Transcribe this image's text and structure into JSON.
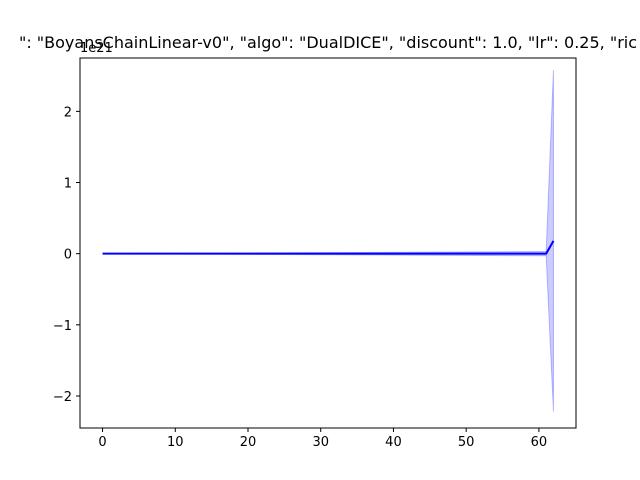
{
  "chart_data": {
    "type": "line",
    "title": "\": \"BoyansChainLinear-v0\", \"algo\": \"DualDICE\", \"discount\": 1.0, \"lr\": 0.25, \"ric",
    "y_offset_label": "1e21",
    "xlabel": "",
    "ylabel": "",
    "xlim": [
      -3.1,
      65.1
    ],
    "ylim": [
      -2.45,
      2.75
    ],
    "x_ticks": [
      0,
      10,
      20,
      30,
      40,
      50,
      60
    ],
    "x_tick_labels": [
      "0",
      "10",
      "20",
      "30",
      "40",
      "50",
      "60"
    ],
    "y_ticks": [
      -2,
      -1,
      0,
      1,
      2
    ],
    "y_tick_labels": [
      "−2",
      "−1",
      "0",
      "1",
      "2"
    ],
    "grid": false,
    "series": [
      {
        "color": "#0000ff",
        "band_color": "#0000ff",
        "points": [
          {
            "x": 0,
            "y": 0,
            "lo": 0,
            "hi": 0
          },
          {
            "x": 61,
            "y": 0,
            "lo": -0.03,
            "hi": 0.03
          },
          {
            "x": 62,
            "y": 0.18,
            "lo": -2.22,
            "hi": 2.58
          }
        ]
      }
    ]
  }
}
